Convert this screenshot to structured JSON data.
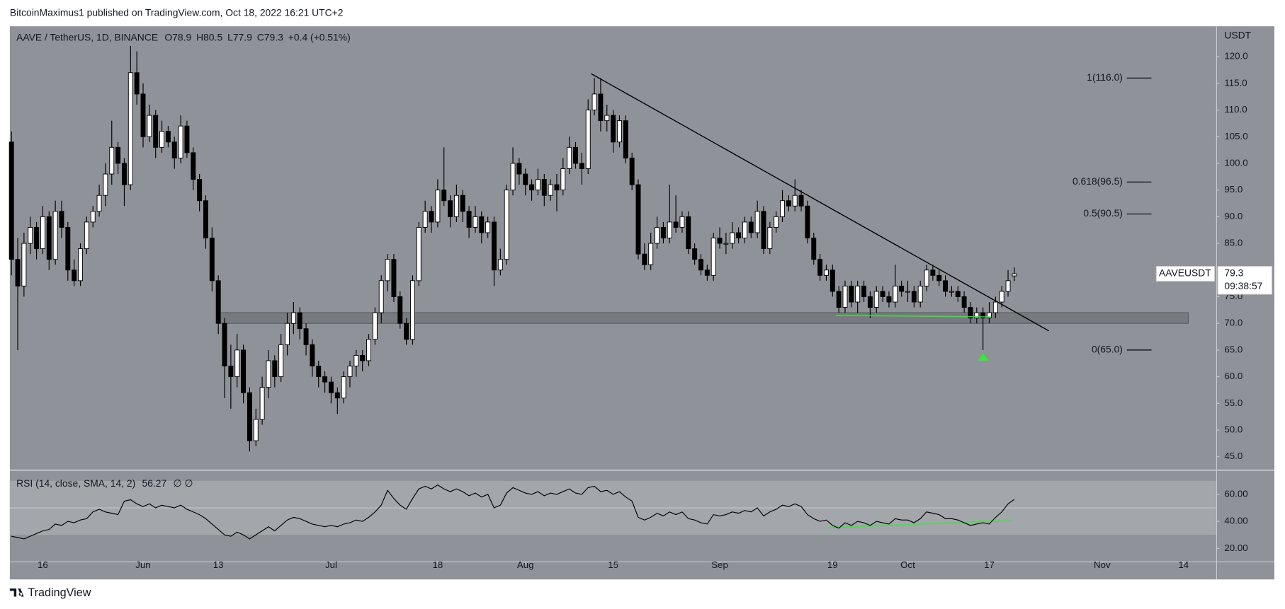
{
  "header": {
    "publisher": "BitcoinMaximus1 published on TradingView.com, Oct 18, 2022 16:21 UTC+2",
    "brand": "TradingView"
  },
  "chart_data": {
    "type": "candlestick",
    "title": "AAVE / TetherUS, 1D, BINANCE",
    "ohlc_labels": [
      "O",
      "H",
      "L",
      "C"
    ],
    "change": "+0.4 (+0.51%)",
    "y_unit": "USDT",
    "symbol": "AAVEUSDT",
    "countdown": "09:38:57",
    "colors": {
      "up": "#ffffff",
      "down": "#000000",
      "background": "#8f9298",
      "line": "#000000",
      "highlight": "#39e639"
    },
    "ylim": [
      42.7,
      125.7
    ],
    "yticks": [
      {
        "value": 45,
        "label": "45.0"
      },
      {
        "value": 50,
        "label": "50.0"
      },
      {
        "value": 55,
        "label": "55.0"
      },
      {
        "value": 60,
        "label": "60.0"
      },
      {
        "value": 65,
        "label": "65.0"
      },
      {
        "value": 70,
        "label": "70.0"
      },
      {
        "value": 75,
        "label": "75.0"
      },
      {
        "value": 80,
        "label": "80.0"
      },
      {
        "value": 85,
        "label": "85.0"
      },
      {
        "value": 90,
        "label": "90.0"
      },
      {
        "value": 95,
        "label": "95.0"
      },
      {
        "value": 100,
        "label": "100.0"
      },
      {
        "value": 105,
        "label": "105.0"
      },
      {
        "value": 110,
        "label": "110.0"
      },
      {
        "value": 115,
        "label": "115.0"
      },
      {
        "value": 120,
        "label": "120.0"
      }
    ],
    "xlim": [
      -0.26,
      192.2
    ],
    "xticks": [
      {
        "value": 5,
        "label": "16"
      },
      {
        "value": 21,
        "label": "Jun"
      },
      {
        "value": 33,
        "label": "13"
      },
      {
        "value": 51,
        "label": "Jul"
      },
      {
        "value": 68,
        "label": "18"
      },
      {
        "value": 82,
        "label": "Aug"
      },
      {
        "value": 96,
        "label": "15"
      },
      {
        "value": 113,
        "label": "Sep"
      },
      {
        "value": 131,
        "label": "19"
      },
      {
        "value": 143,
        "label": "Oct"
      },
      {
        "value": 156,
        "label": "17"
      },
      {
        "value": 174,
        "label": "Nov"
      },
      {
        "value": 187,
        "label": "14"
      }
    ],
    "grid": false,
    "candles": [
      [
        104,
        106,
        79,
        82
      ],
      [
        82,
        86,
        65,
        77
      ],
      [
        77,
        87,
        75,
        85
      ],
      [
        85,
        90,
        83,
        88
      ],
      [
        88,
        89,
        82,
        84
      ],
      [
        84,
        92,
        83,
        90
      ],
      [
        90,
        91,
        80,
        82
      ],
      [
        82,
        93,
        81,
        91
      ],
      [
        91,
        93,
        86,
        88
      ],
      [
        88,
        89,
        78,
        80
      ],
      [
        80,
        82,
        77,
        78
      ],
      [
        78,
        85,
        77,
        84
      ],
      [
        84,
        90,
        83,
        89
      ],
      [
        89,
        92,
        88,
        91
      ],
      [
        91,
        96,
        90,
        94
      ],
      [
        94,
        100,
        92,
        98
      ],
      [
        98,
        108,
        96,
        103
      ],
      [
        103,
        104,
        98,
        100
      ],
      [
        100,
        101,
        92,
        96
      ],
      [
        96,
        122,
        95,
        117
      ],
      [
        117,
        121,
        111,
        113
      ],
      [
        113,
        115,
        103,
        105
      ],
      [
        105,
        111,
        104,
        109
      ],
      [
        109,
        110,
        101,
        103
      ],
      [
        103,
        108,
        102,
        106
      ],
      [
        106,
        107,
        103,
        104
      ],
      [
        104,
        105,
        99,
        101
      ],
      [
        101,
        109,
        100,
        107
      ],
      [
        107,
        108,
        101,
        102
      ],
      [
        102,
        103,
        95,
        97
      ],
      [
        97,
        98,
        91,
        93
      ],
      [
        93,
        94,
        84,
        86
      ],
      [
        86,
        88,
        76,
        78
      ],
      [
        78,
        79,
        68,
        70
      ],
      [
        70,
        71,
        56,
        62
      ],
      [
        62,
        66,
        54,
        60
      ],
      [
        60,
        68,
        58,
        65
      ],
      [
        65,
        66,
        55,
        57
      ],
      [
        57,
        58,
        46,
        48
      ],
      [
        48,
        54,
        47,
        52
      ],
      [
        52,
        60,
        51,
        58
      ],
      [
        58,
        65,
        56,
        63
      ],
      [
        63,
        64,
        58,
        60
      ],
      [
        60,
        68,
        59,
        66
      ],
      [
        66,
        72,
        64,
        70
      ],
      [
        70,
        74,
        68,
        72
      ],
      [
        72,
        73,
        67,
        69
      ],
      [
        69,
        70,
        64,
        66
      ],
      [
        66,
        67,
        60,
        62
      ],
      [
        62,
        63,
        58,
        60
      ],
      [
        60,
        61,
        57,
        59
      ],
      [
        59,
        60,
        55,
        57
      ],
      [
        57,
        58,
        53,
        56
      ],
      [
        56,
        61,
        55,
        60
      ],
      [
        60,
        63,
        58,
        62
      ],
      [
        62,
        65,
        60,
        64
      ],
      [
        64,
        65,
        61,
        63
      ],
      [
        63,
        68,
        62,
        67
      ],
      [
        67,
        73,
        66,
        72
      ],
      [
        72,
        79,
        70,
        78
      ],
      [
        78,
        83,
        76,
        82
      ],
      [
        82,
        83,
        74,
        75
      ],
      [
        75,
        76,
        69,
        70
      ],
      [
        70,
        71,
        66,
        67
      ],
      [
        67,
        79,
        66,
        78
      ],
      [
        78,
        89,
        77,
        88
      ],
      [
        88,
        93,
        87,
        91
      ],
      [
        91,
        92,
        87,
        89
      ],
      [
        89,
        97,
        88,
        95
      ],
      [
        95,
        103,
        92,
        93
      ],
      [
        93,
        94,
        88,
        90
      ],
      [
        90,
        96,
        89,
        94
      ],
      [
        94,
        95,
        89,
        91
      ],
      [
        91,
        92,
        86,
        88
      ],
      [
        88,
        92,
        87,
        90
      ],
      [
        90,
        91,
        85,
        87
      ],
      [
        87,
        90,
        86,
        89
      ],
      [
        89,
        90,
        77,
        80
      ],
      [
        80,
        84,
        79,
        82
      ],
      [
        82,
        96,
        81,
        95
      ],
      [
        95,
        103,
        94,
        100
      ],
      [
        100,
        101,
        96,
        98
      ],
      [
        98,
        99,
        94,
        96
      ],
      [
        96,
        97,
        93,
        95
      ],
      [
        95,
        99,
        94,
        97
      ],
      [
        97,
        98,
        92,
        94
      ],
      [
        94,
        97,
        93,
        96
      ],
      [
        96,
        98,
        91,
        95
      ],
      [
        95,
        101,
        94,
        99
      ],
      [
        99,
        105,
        98,
        103
      ],
      [
        103,
        104,
        99,
        100
      ],
      [
        100,
        102,
        96,
        99
      ],
      [
        99,
        112,
        98,
        110
      ],
      [
        110,
        116,
        109,
        113
      ],
      [
        113,
        116,
        106,
        108
      ],
      [
        108,
        111,
        106,
        109
      ],
      [
        109,
        110,
        102,
        104
      ],
      [
        104,
        109,
        103,
        108
      ],
      [
        108,
        109,
        100,
        101
      ],
      [
        101,
        102,
        95,
        96
      ],
      [
        96,
        97,
        82,
        83
      ],
      [
        83,
        85,
        80,
        81
      ],
      [
        81,
        87,
        80,
        85
      ],
      [
        85,
        90,
        84,
        88
      ],
      [
        88,
        89,
        85,
        86
      ],
      [
        86,
        96,
        85,
        89
      ],
      [
        89,
        94,
        87,
        88
      ],
      [
        88,
        91,
        87,
        90
      ],
      [
        90,
        91,
        83,
        84
      ],
      [
        84,
        85,
        81,
        82
      ],
      [
        82,
        83,
        79,
        80
      ],
      [
        80,
        81,
        78,
        79
      ],
      [
        79,
        87,
        78,
        86
      ],
      [
        86,
        88,
        84,
        85
      ],
      [
        85,
        87,
        83,
        85
      ],
      [
        85,
        89,
        84,
        87
      ],
      [
        87,
        88,
        85,
        86
      ],
      [
        86,
        90,
        85,
        89
      ],
      [
        89,
        90,
        86,
        87
      ],
      [
        87,
        93,
        86,
        91
      ],
      [
        91,
        92,
        83,
        84
      ],
      [
        84,
        89,
        83,
        88
      ],
      [
        88,
        91,
        87,
        90
      ],
      [
        90,
        95,
        89,
        93
      ],
      [
        93,
        94,
        91,
        92
      ],
      [
        92,
        97,
        91,
        94
      ],
      [
        94,
        95,
        91,
        92
      ],
      [
        92,
        93,
        85,
        86
      ],
      [
        86,
        87,
        81,
        82
      ],
      [
        82,
        83,
        78,
        79
      ],
      [
        79,
        81,
        78,
        80
      ],
      [
        80,
        81,
        75,
        76
      ],
      [
        76,
        77,
        72,
        73
      ],
      [
        73,
        78,
        72,
        77
      ],
      [
        77,
        78,
        73,
        74
      ],
      [
        74,
        78,
        72,
        77
      ],
      [
        77,
        78,
        74,
        75
      ],
      [
        75,
        76,
        71,
        73
      ],
      [
        73,
        77,
        72,
        76
      ],
      [
        76,
        77,
        74,
        75
      ],
      [
        75,
        76,
        73,
        74
      ],
      [
        74,
        81,
        73,
        77
      ],
      [
        77,
        78,
        75,
        76
      ],
      [
        76,
        78,
        74,
        76
      ],
      [
        76,
        77,
        73,
        74
      ],
      [
        74,
        78,
        73,
        77
      ],
      [
        77,
        81,
        76,
        80
      ],
      [
        80,
        81,
        78,
        79
      ],
      [
        79,
        80,
        77,
        78
      ],
      [
        78,
        79,
        75,
        76
      ],
      [
        76,
        77,
        75,
        76
      ],
      [
        76,
        77,
        74,
        75
      ],
      [
        75,
        76,
        72,
        73
      ],
      [
        73,
        74,
        70,
        71
      ],
      [
        71,
        73,
        70,
        72
      ],
      [
        72,
        73,
        65,
        71
      ],
      [
        71,
        74,
        70,
        72
      ],
      [
        72,
        75,
        71,
        74
      ],
      [
        74,
        77,
        73,
        76
      ],
      [
        76,
        80,
        75,
        78
      ],
      [
        78.9,
        80.5,
        77.9,
        79.3
      ]
    ],
    "support_zone": [
      70,
      72
    ],
    "trendline": {
      "x": [
        92.5,
        165.5
      ],
      "y": [
        116.8,
        68.6
      ]
    },
    "support_line": {
      "x": [
        131.5,
        156.3
      ],
      "y": [
        71.5,
        71.2
      ]
    },
    "signal_marker": {
      "x": 155,
      "y": 63.6
    },
    "fib_levels": [
      {
        "label": "1(116.0)",
        "value": 116
      },
      {
        "label": "0.618(96.5)",
        "value": 96.5
      },
      {
        "label": "0.5(90.5)",
        "value": 90.5
      },
      {
        "label": "0(65.0)",
        "value": 65
      }
    ],
    "indicator": {
      "type": "line",
      "title": "RSI (14, close, SMA, 14, 2)",
      "na_labels": "∅ ∅",
      "ylim": [
        10.3,
        77
      ],
      "yticks": [
        {
          "value": 20,
          "label": "20.00"
        },
        {
          "value": 40,
          "label": "40.00"
        },
        {
          "value": 60,
          "label": "60.00"
        }
      ],
      "band": [
        30,
        70
      ],
      "midline": 50,
      "values": [
        29,
        28,
        27,
        29,
        31,
        33,
        34,
        38,
        37,
        40,
        39,
        41,
        42,
        47,
        49,
        47,
        46,
        45,
        55,
        56,
        53,
        51,
        53,
        50,
        52,
        51,
        50,
        52,
        49,
        47,
        45,
        42,
        38,
        34,
        30,
        29,
        32,
        30,
        27,
        30,
        33,
        36,
        33,
        37,
        41,
        43,
        42,
        40,
        38,
        37,
        36,
        37,
        36,
        38,
        39,
        41,
        40,
        43,
        47,
        52,
        63,
        57,
        52,
        49,
        57,
        64,
        66,
        64,
        67,
        64,
        62,
        64,
        62,
        59,
        61,
        58,
        60,
        50,
        52,
        61,
        65,
        63,
        61,
        60,
        62,
        59,
        61,
        60,
        62,
        64,
        61,
        60,
        65,
        66,
        62,
        63,
        60,
        62,
        58,
        55,
        43,
        41,
        43,
        46,
        44,
        47,
        45,
        47,
        42,
        41,
        39,
        38,
        45,
        44,
        45,
        47,
        46,
        48,
        47,
        50,
        44,
        47,
        49,
        52,
        51,
        53,
        51,
        45,
        42,
        40,
        41,
        37,
        35,
        39,
        37,
        40,
        39,
        37,
        40,
        39,
        38,
        42,
        41,
        41,
        39,
        42,
        47,
        46,
        45,
        42,
        42,
        41,
        39,
        37,
        38,
        39,
        38,
        43,
        47,
        53,
        56.27
      ],
      "trendline": {
        "x": [
          130.2,
          159.6
        ],
        "y": [
          35.2,
          40.6
        ]
      }
    }
  }
}
